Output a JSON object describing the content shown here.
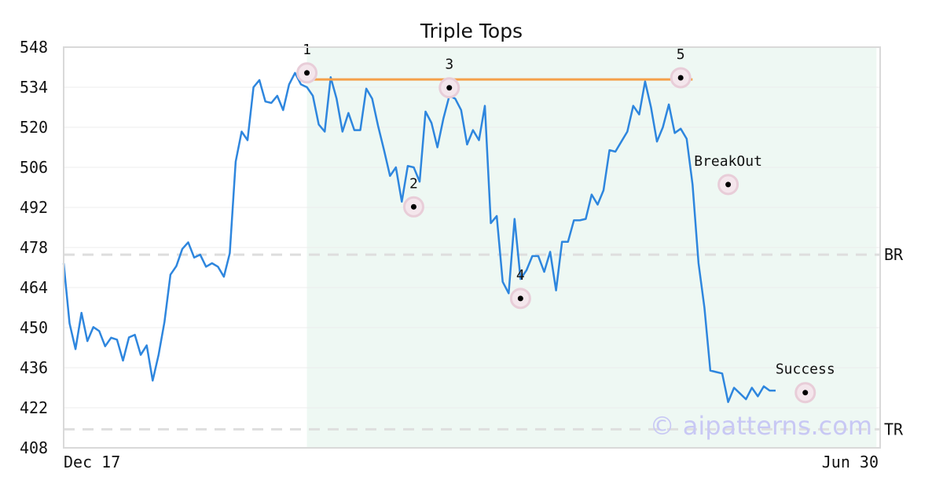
{
  "chart_data": {
    "type": "line",
    "title": "Triple Tops",
    "ylim": [
      408,
      548
    ],
    "yticks": [
      408,
      422,
      436,
      450,
      464,
      478,
      492,
      506,
      520,
      534,
      548
    ],
    "x_labels": [
      "Dec 17",
      "Jun 30"
    ],
    "grid": true,
    "colors": {
      "price": "#2e86de",
      "neckline": "#f5a04a",
      "shade": "#eef8f3",
      "level": "#dedede",
      "marker_halo": "#e8cdd8",
      "marker_dot": "#000000"
    },
    "shade_range": [
      41,
      137
    ],
    "series": [
      {
        "values": [
          472.5,
          451.5,
          442.5,
          455.2,
          445.3,
          450.2,
          448.8,
          443.5,
          446.5,
          445.8,
          438.5,
          446.6,
          447.5,
          440.5,
          443.8,
          431.5,
          440.5,
          452.0,
          468.5,
          471.5,
          477.5,
          479.8,
          474.5,
          475.5,
          471.3,
          472.5,
          471.3,
          467.8,
          476.0,
          508.0,
          518.5,
          515.5,
          534.0,
          536.5,
          529.0,
          528.5,
          531.0,
          526.0,
          535.0,
          539.0,
          535.0,
          534.0,
          531.0,
          521.0,
          518.5,
          537.5,
          530.0,
          518.5,
          525.0,
          519.0,
          519.0,
          533.5,
          530.0,
          520.5,
          512.0,
          503.0,
          506.0,
          494.0,
          506.5,
          506.0,
          501.0,
          525.5,
          521.5,
          513.0,
          523.0,
          531.0,
          530.0,
          526.0,
          514.0,
          519.0,
          515.5,
          527.5,
          486.5,
          489.0,
          466.0,
          462.0,
          488.0,
          467.0,
          470.0,
          475.0,
          475.0,
          469.5,
          476.5,
          463.0,
          480.0,
          480.0,
          487.5,
          487.5,
          488.0,
          496.5,
          493.0,
          498.0,
          512.0,
          511.5,
          515.0,
          518.5,
          527.5,
          524.5,
          536.0,
          527.0,
          515.0,
          520.0,
          528.0,
          518.0,
          519.5,
          516.0,
          500.0,
          472.5,
          457.0,
          435.0,
          434.5,
          434.0,
          424.0,
          429.0,
          427.0,
          425.0,
          429.0,
          426.0,
          429.5,
          428.0,
          428.0
        ]
      }
    ],
    "neckline": {
      "from_index": 41,
      "to_index": 106,
      "value": 536.7
    },
    "levels": [
      {
        "label": "BR",
        "value": 475.5
      },
      {
        "label": "TR",
        "value": 414.5
      }
    ],
    "annotations": [
      {
        "label": "1",
        "index": 41,
        "value": 539.0,
        "label_pos": "above"
      },
      {
        "label": "2",
        "index": 59,
        "value": 492.2,
        "label_pos": "above"
      },
      {
        "label": "3",
        "index": 65,
        "value": 533.8,
        "label_pos": "above"
      },
      {
        "label": "4",
        "index": 77,
        "value": 460.2,
        "label_pos": "above"
      },
      {
        "label": "5",
        "index": 104,
        "value": 537.3,
        "label_pos": "above"
      },
      {
        "label": "BreakOut",
        "index": 112,
        "value": 500.0,
        "label_pos": "above"
      },
      {
        "label": "Success",
        "index": 125,
        "value": 427.3,
        "label_pos": "above"
      }
    ],
    "watermark": "© aipatterns.com"
  }
}
